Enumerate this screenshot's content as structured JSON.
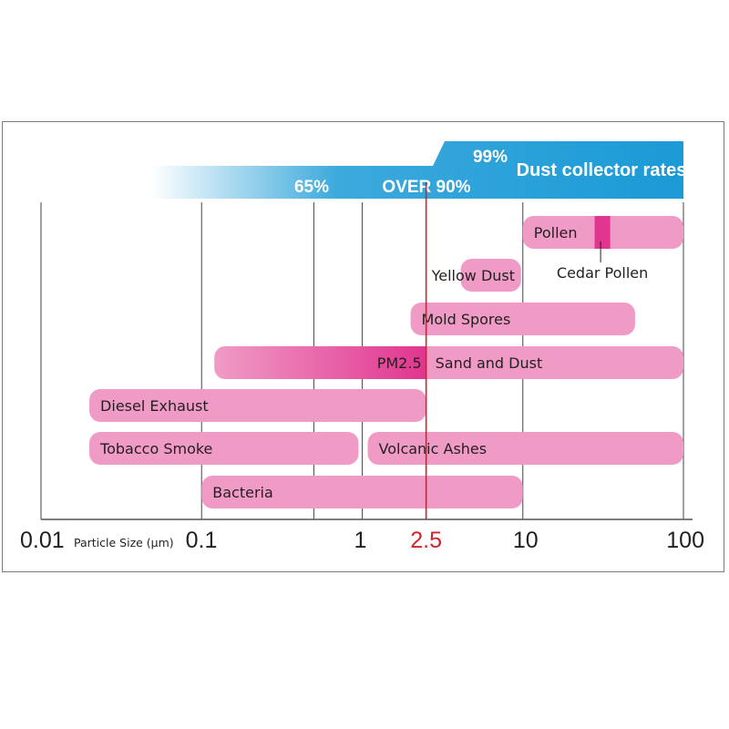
{
  "chart_data": {
    "type": "range-bar",
    "x_scale": "log",
    "x_range": [
      0.01,
      100
    ],
    "x_ticks": [
      {
        "value": 0.01,
        "label": "0.01"
      },
      {
        "value": 0.1,
        "label": "0.1"
      },
      {
        "value": 1,
        "label": "1"
      },
      {
        "value": 2.5,
        "label": "2.5"
      },
      {
        "value": 10,
        "label": "10"
      },
      {
        "value": 100,
        "label": "100"
      }
    ],
    "xlabel": "Particle Size (μm)",
    "grid_lines_at": [
      0.01,
      0.1,
      0.5,
      1,
      10,
      100
    ],
    "reference_line": {
      "value": 2.5,
      "label": "2.5",
      "color": "#d2232a"
    },
    "collector": {
      "title": "Dust collector rates",
      "rates": [
        {
          "label": "65%",
          "value": 0.5
        },
        {
          "label": "OVER 90%",
          "value": 1.5
        },
        {
          "label": "99%",
          "value": 5
        }
      ],
      "color": "#1a9ad6"
    },
    "series": [
      {
        "name": "Pollen",
        "min": 10,
        "max": 100
      },
      {
        "name": "Yellow Dust",
        "min": 4,
        "max": 10
      },
      {
        "name": "Mold Spores",
        "min": 2,
        "max": 50
      },
      {
        "name": "Sand and Dust",
        "min": 0.12,
        "max": 100
      },
      {
        "name": "Diesel Exhaust",
        "min": 0.02,
        "max": 2.5
      },
      {
        "name": "Tobacco Smoke",
        "min": 0.02,
        "max": 1
      },
      {
        "name": "Volcanic Ashes",
        "min": 1,
        "max": 100
      },
      {
        "name": "Bacteria",
        "min": 0.1,
        "max": 10
      }
    ],
    "callouts": [
      {
        "name": "Cedar Pollen",
        "min": 28,
        "max": 35,
        "color": "#e1358f"
      },
      {
        "name": "PM2.5",
        "min": 0.12,
        "max": 2.5,
        "color": "#e1358f"
      }
    ],
    "colors": {
      "bar": "#f09bc6",
      "highlight": "#e1358f",
      "grid": "#555555"
    }
  }
}
